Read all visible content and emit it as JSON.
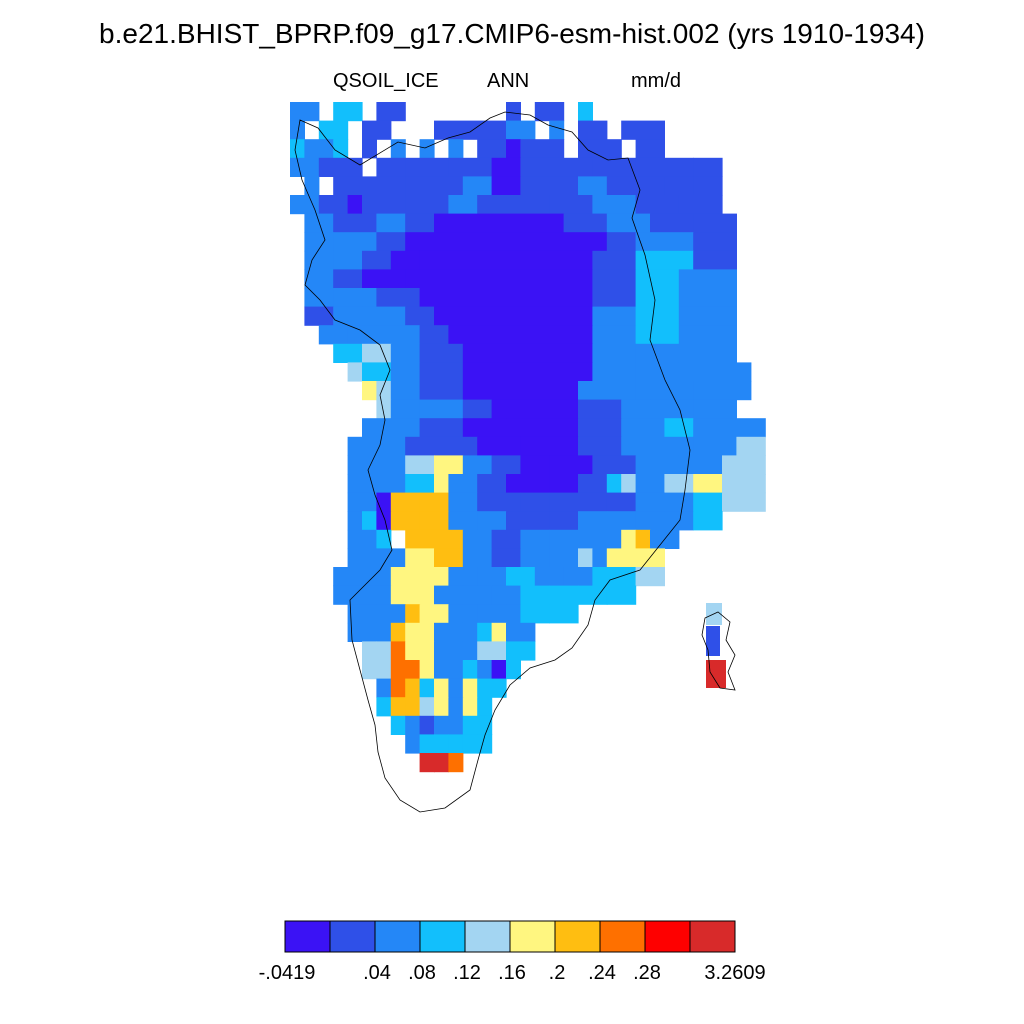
{
  "title": "b.e21.BHIST_BPRP.f09_g17.CMIP6-esm-hist.002 (yrs 1910-1934)",
  "variable": "QSOIL_ICE",
  "season": "ANN",
  "units": "mm/d",
  "colorbar": {
    "colors": [
      "#3b12f5",
      "#2f50e8",
      "#2487f7",
      "#12bffc",
      "#a3d5f2",
      "#fff680",
      "#ffbe11",
      "#fe7000",
      "#fe0000",
      "#d82a2a"
    ],
    "labels": [
      "-.0419",
      ".04",
      ".08",
      ".12",
      ".16",
      ".2",
      ".24",
      ".28",
      "3.2609"
    ]
  },
  "colors": {
    "coastline": "#000000",
    "background": "#ffffff"
  }
}
